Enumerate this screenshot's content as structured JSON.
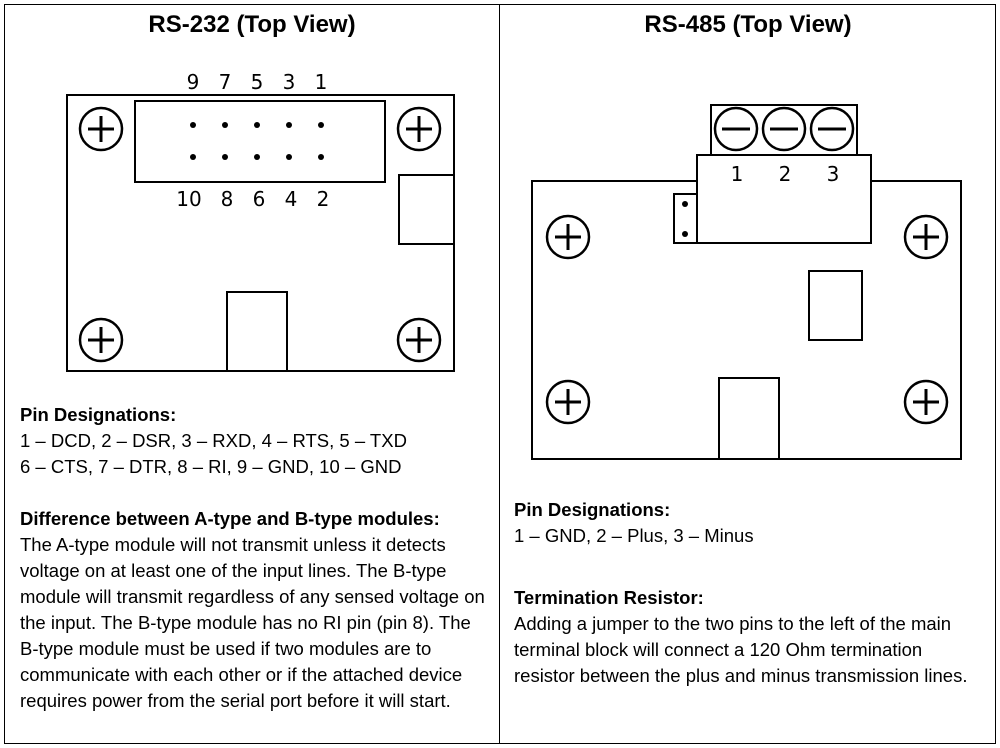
{
  "rs232": {
    "title": "RS-232 (Top View)",
    "pin_top_labels": [
      "9",
      "7",
      "5",
      "3",
      "1"
    ],
    "pin_bottom_labels": [
      "10",
      "8",
      "6",
      "4",
      "2"
    ],
    "pin_designations_heading": "Pin Designations:",
    "pin_designations_line1": "1 – DCD, 2 – DSR, 3 – RXD, 4 – RTS, 5 – TXD",
    "pin_designations_line2": "6 – CTS, 7 – DTR, 8 – RI, 9 – GND, 10 – GND",
    "difference_heading": "Difference between A-type and B-type modules:",
    "difference_text": "The A-type module will not transmit unless it detects voltage on at least one of the input lines.  The B-type module will transmit regardless of any sensed voltage on the input.  The B-type module has no RI pin (pin 8). The B-type module must be used if two modules are to communicate with each other or if the attached device requires power from the serial port before it will start."
  },
  "rs485": {
    "title": "RS-485 (Top View)",
    "terminal_labels": [
      "1",
      "2",
      "3"
    ],
    "pin_designations_heading": "Pin Designations:",
    "pin_designations_line1": "1 – GND, 2 – Plus, 3 – Minus",
    "termination_heading": "Termination Resistor:",
    "termination_text": "Adding a jumper to the two pins to the left of the main terminal block will connect a 120 Ohm termination resistor between the plus and minus transmission lines."
  },
  "icons": [
    "mounting-hole-icon",
    "terminal-screw-icon"
  ]
}
